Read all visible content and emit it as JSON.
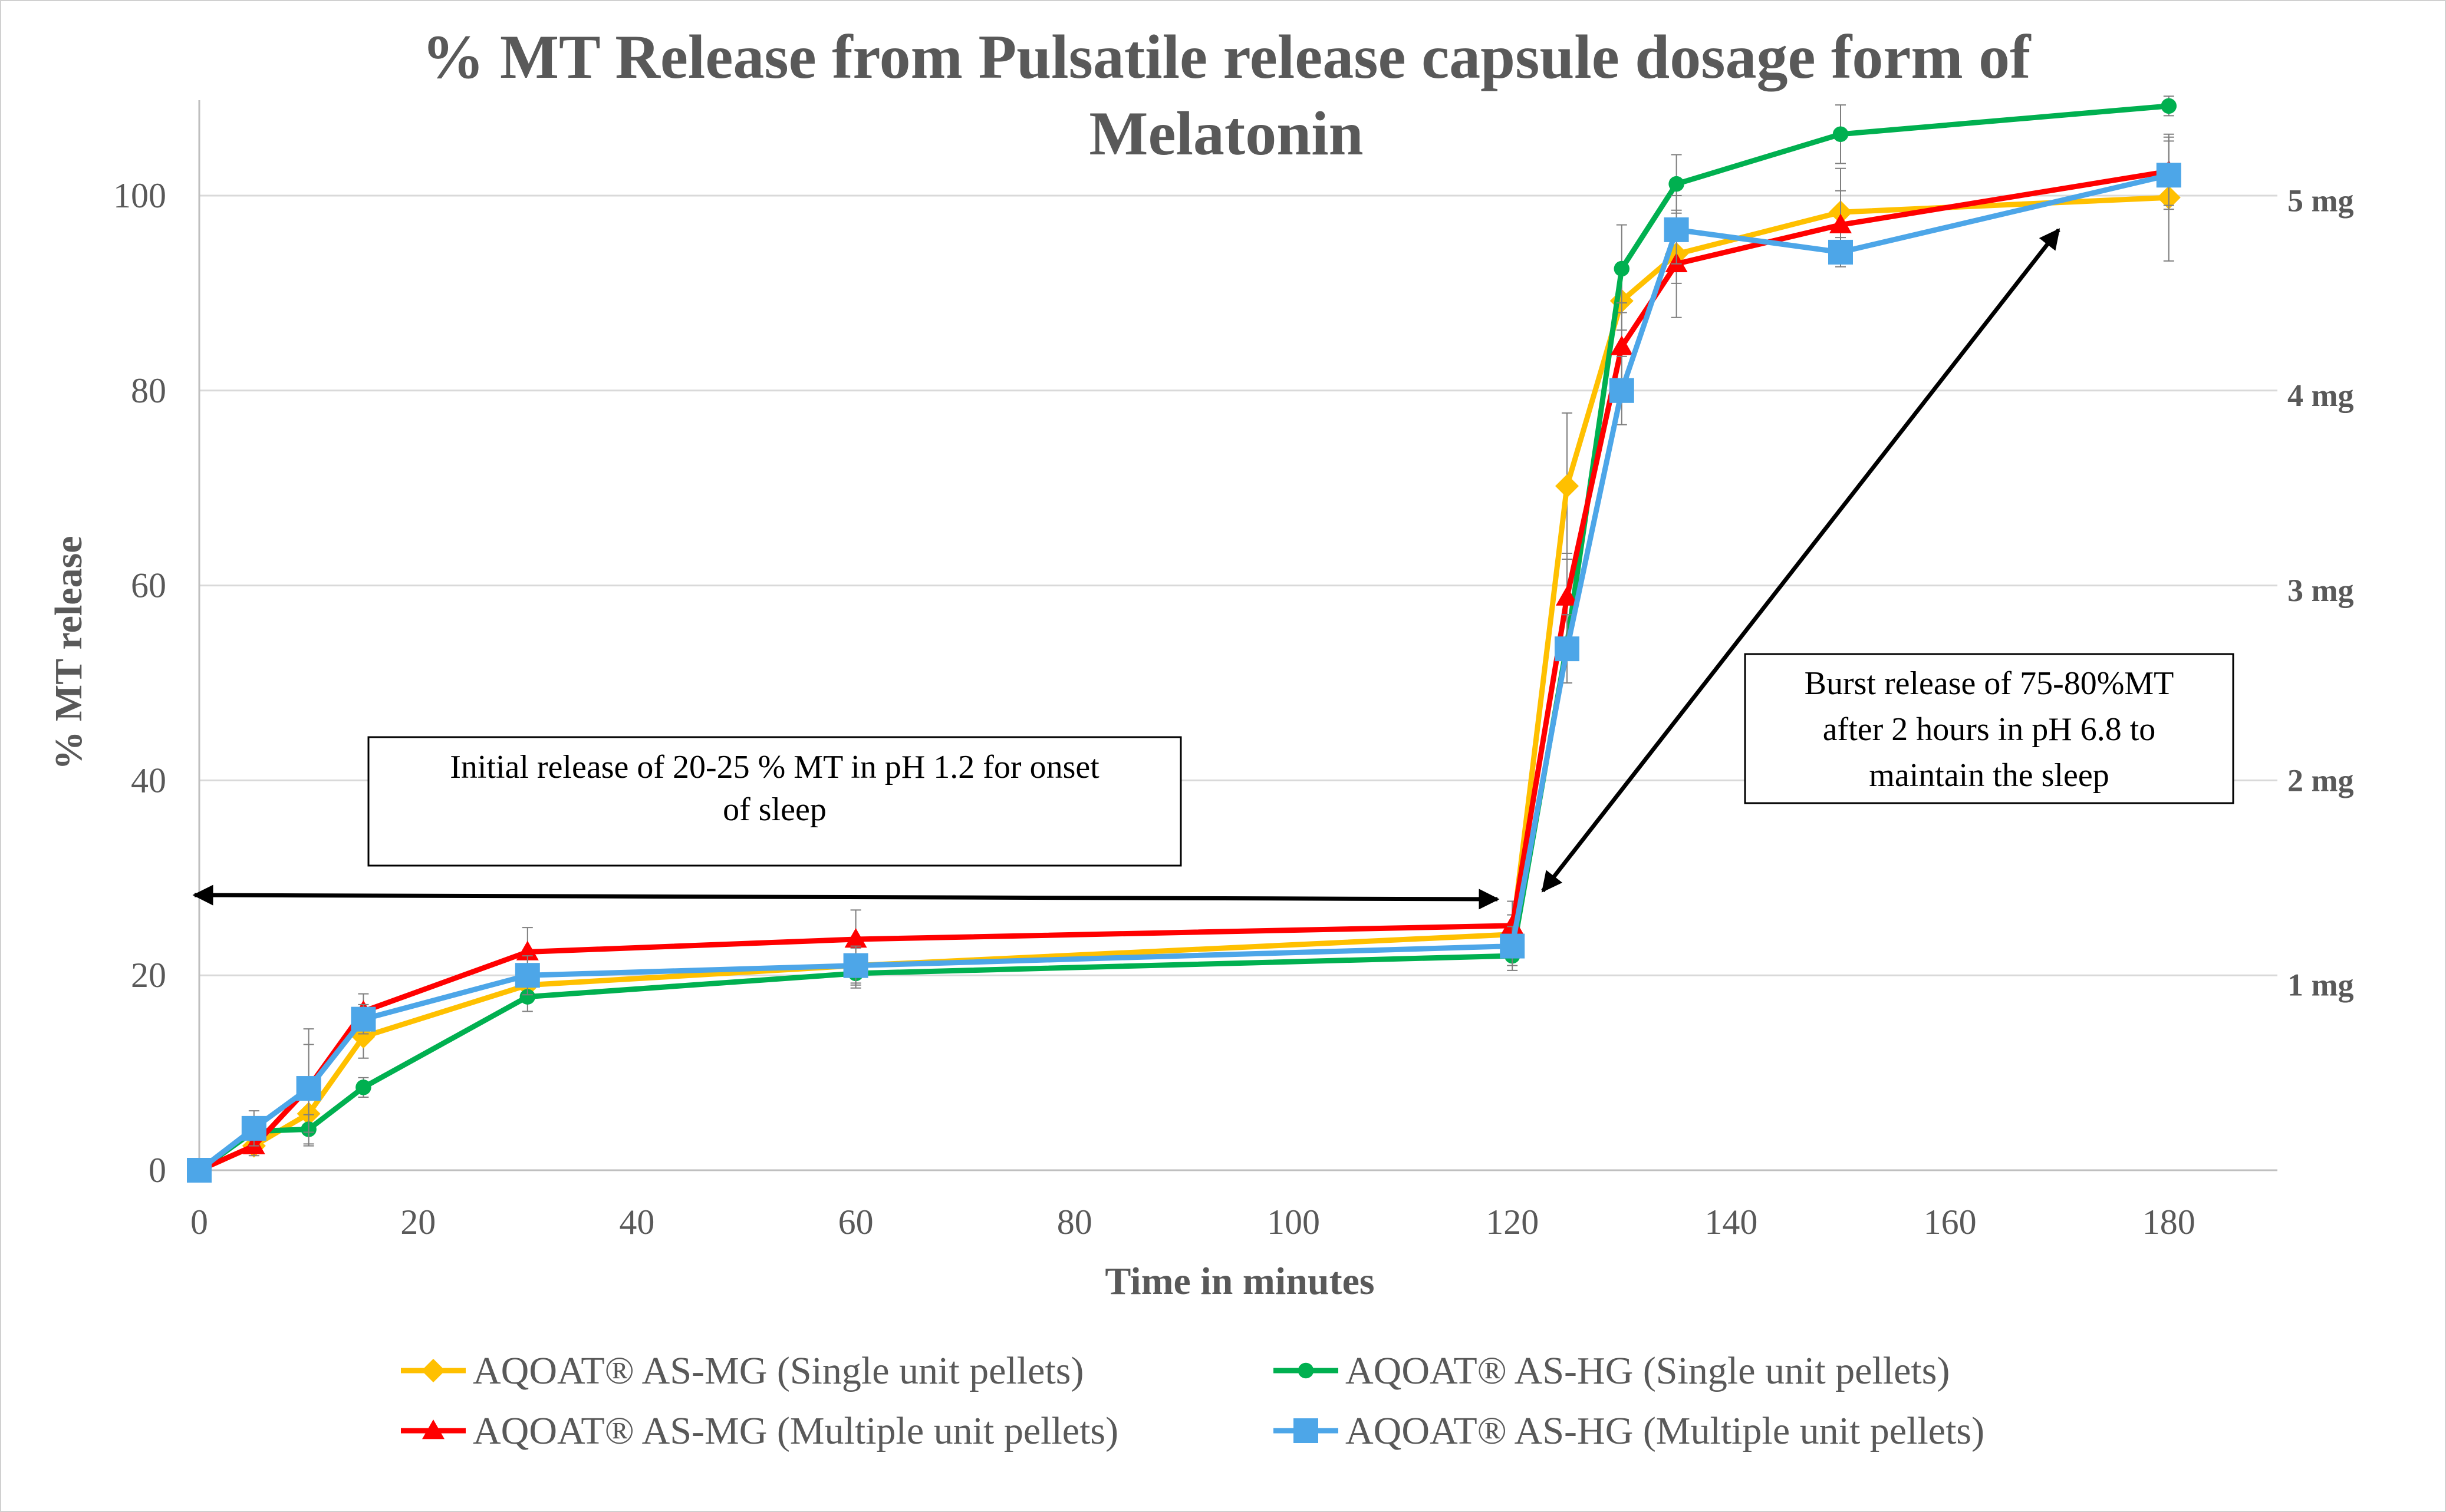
{
  "chart_data": {
    "type": "line",
    "title_line1": "% MT Release from Pulsatile release capsule dosage form of",
    "title_line2": "Melatonin",
    "xlabel": "Time in minutes",
    "ylabel": "% MT release",
    "xlim": [
      0,
      190
    ],
    "ylim": [
      0,
      110
    ],
    "x_ticks": [
      0,
      20,
      40,
      60,
      80,
      100,
      120,
      140,
      160,
      180
    ],
    "y_ticks": [
      0,
      20,
      40,
      60,
      80,
      100
    ],
    "right_axis_labels": [
      {
        "label": "1 mg",
        "y": 19
      },
      {
        "label": "2 mg",
        "y": 40
      },
      {
        "label": "3 mg",
        "y": 59.5
      },
      {
        "label": "4 mg",
        "y": 79.5
      },
      {
        "label": "5 mg",
        "y": 99.5
      }
    ],
    "grid": "horizontal",
    "legend_position": "bottom",
    "annotations": {
      "initial": {
        "lines": [
          "Initial release of 20-25 % MT in pH 1.2 for onset",
          "of sleep"
        ]
      },
      "burst": {
        "lines": [
          "Burst release of 75-80%MT",
          "after 2 hours in pH 6.8 to",
          "maintain the sleep"
        ]
      }
    },
    "series": [
      {
        "name": "AQOAT® AS-MG (Single unit pellets)",
        "color": "#ffc000",
        "marker": "diamond",
        "x": [
          0,
          5,
          10,
          15,
          30,
          60,
          120,
          125,
          130,
          135,
          150,
          180
        ],
        "y": [
          0,
          2.5,
          5.8,
          13.7,
          19.0,
          21.0,
          24.2,
          70.2,
          89.2,
          94.0,
          98.3,
          99.8
        ],
        "err": [
          0,
          0.8,
          1.8,
          2.2,
          1.5,
          1.8,
          2.0,
          7.5,
          3.0,
          3.0,
          4.5,
          6.5
        ]
      },
      {
        "name": "AQOAT® AS-HG (Single unit pellets)",
        "color": "#00b050",
        "marker": "circle",
        "x": [
          0,
          5,
          10,
          15,
          30,
          60,
          120,
          125,
          130,
          135,
          150,
          180
        ],
        "y": [
          0,
          4.0,
          4.2,
          8.5,
          17.8,
          20.2,
          22.0,
          54.0,
          92.5,
          101.2,
          106.3,
          109.2
        ],
        "err": [
          0,
          1.0,
          1.5,
          1.0,
          1.5,
          1.5,
          1.5,
          4.0,
          4.5,
          3.0,
          3.0,
          1.0
        ]
      },
      {
        "name": "AQOAT® AS-MG (Multiple unit pellets)",
        "color": "#ff0000",
        "marker": "triangle",
        "x": [
          0,
          5,
          10,
          15,
          30,
          60,
          120,
          125,
          130,
          135,
          150,
          180
        ],
        "y": [
          0,
          2.5,
          8.5,
          16.3,
          22.4,
          23.7,
          25.1,
          58.8,
          84.5,
          93.0,
          97.0,
          102.5
        ],
        "err": [
          0,
          1.0,
          6.0,
          1.8,
          2.5,
          3.0,
          2.5,
          4.5,
          4.5,
          5.5,
          3.5,
          3.5
        ]
      },
      {
        "name": "AQOAT® AS-HG (Multiple unit pellets)",
        "color": "#4da6e8",
        "marker": "square",
        "x": [
          0,
          5,
          10,
          15,
          30,
          60,
          120,
          125,
          130,
          135,
          150,
          180
        ],
        "y": [
          0,
          4.3,
          8.4,
          15.5,
          20.0,
          21.0,
          23.0,
          53.5,
          80.0,
          96.5,
          94.2,
          102.1
        ],
        "err": [
          0,
          1.8,
          4.5,
          1.5,
          2.0,
          2.0,
          2.0,
          3.5,
          3.5,
          3.5,
          1.5,
          3.5
        ]
      }
    ]
  }
}
